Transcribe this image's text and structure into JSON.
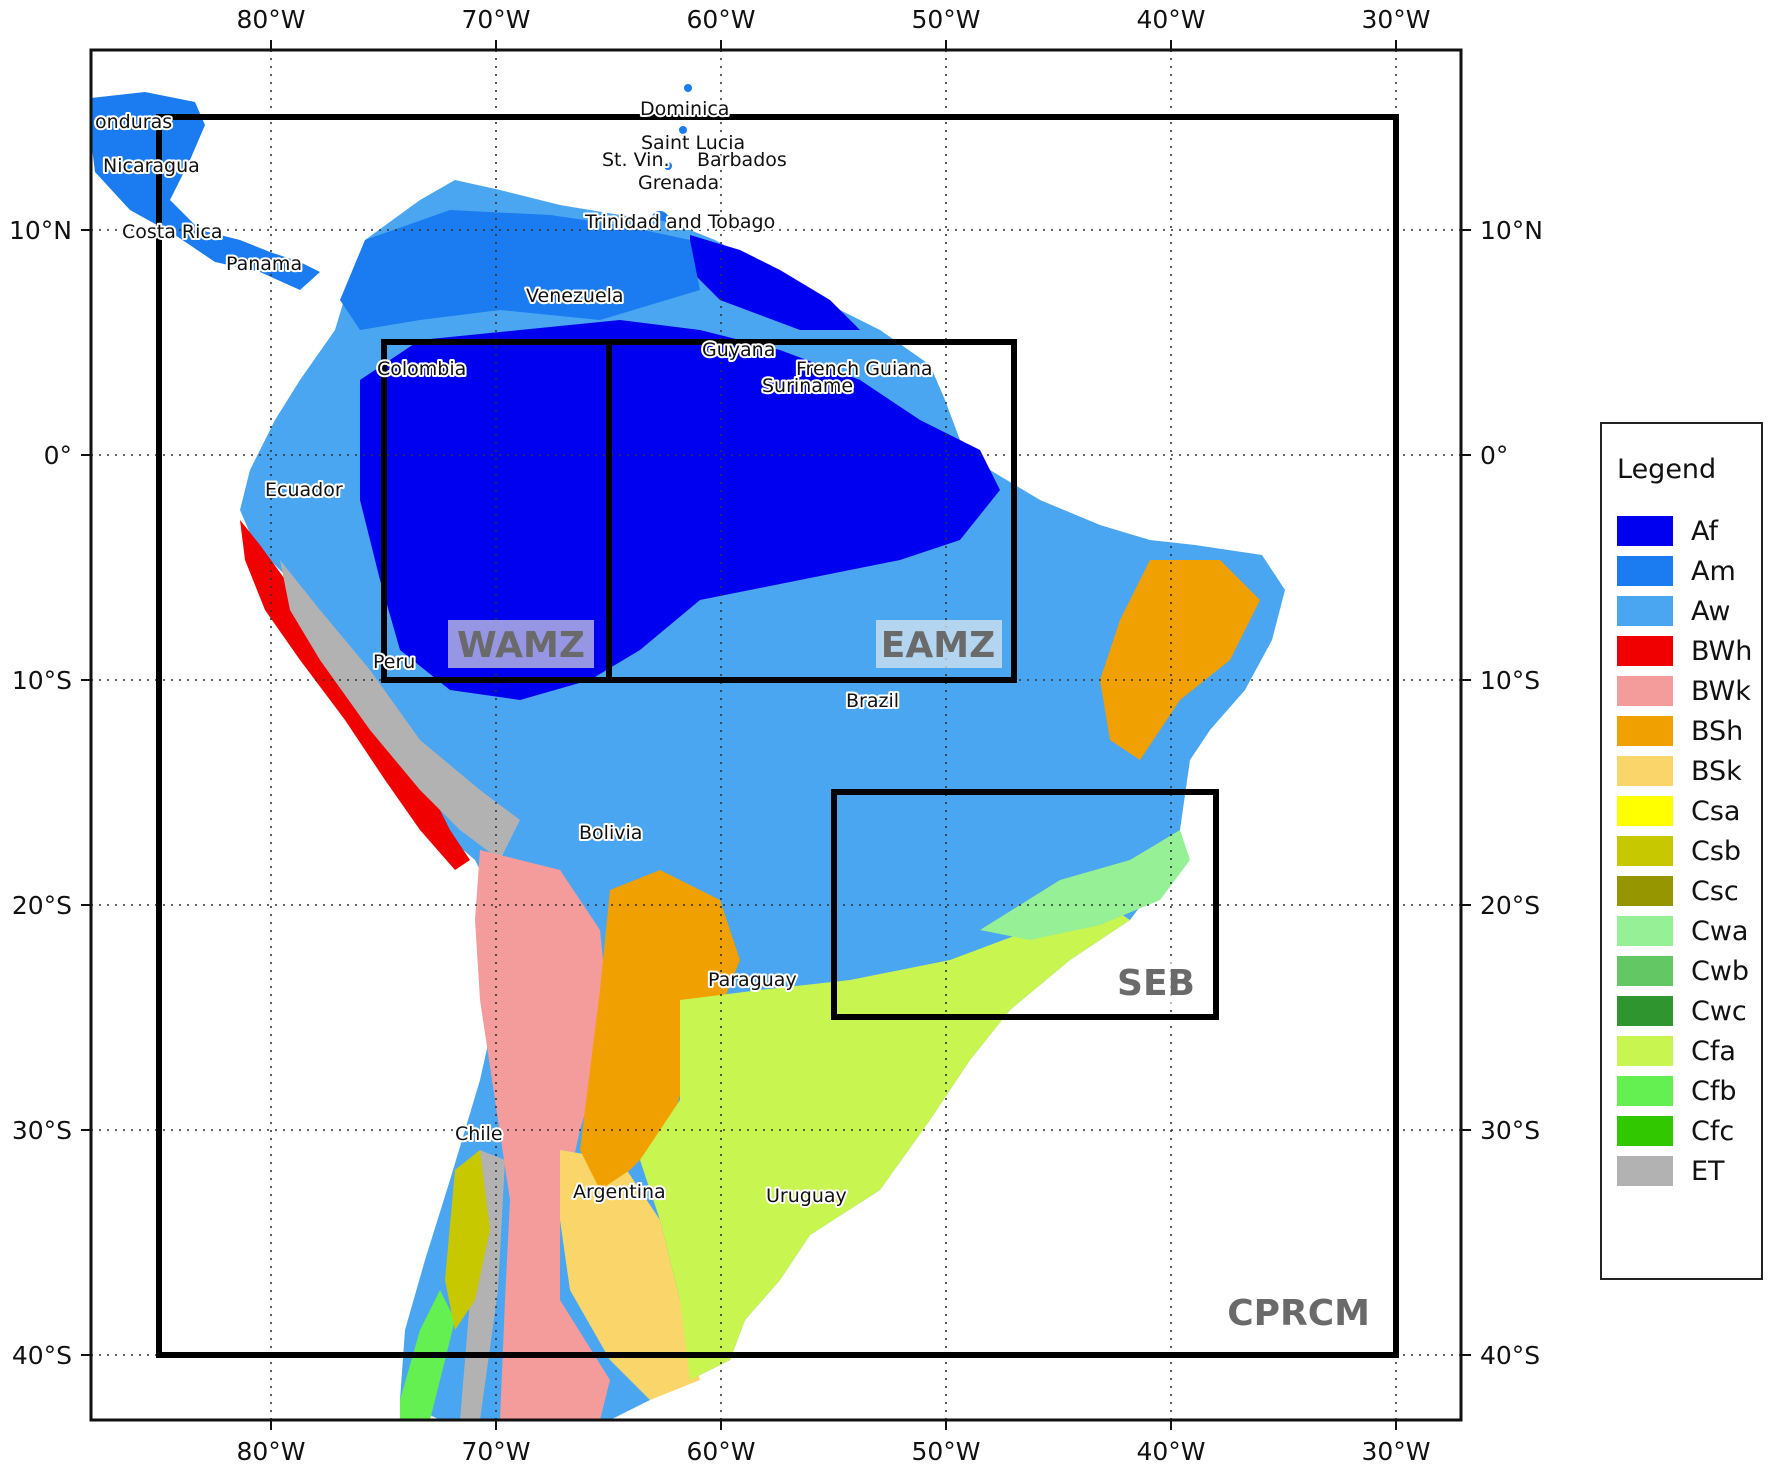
{
  "map": {
    "lon_ticks": [
      "80°W",
      "70°W",
      "60°W",
      "50°W",
      "40°W",
      "30°W"
    ],
    "lat_ticks": [
      "10°N",
      "0°",
      "10°S",
      "20°S",
      "30°S",
      "40°S"
    ],
    "extent": {
      "lon": [
        -88,
        -27
      ],
      "lat": [
        -43,
        18
      ]
    },
    "graticule_step_deg": 10,
    "grid": true,
    "domain_label": "CPRCM",
    "domain_box": {
      "lon": [
        -85,
        -30
      ],
      "lat": [
        -40,
        15
      ]
    },
    "subregions": [
      {
        "name": "WAMZ",
        "lon": [
          -75,
          -65
        ],
        "lat": [
          -10,
          5
        ]
      },
      {
        "name": "EAMZ",
        "lon": [
          -65,
          -47
        ],
        "lat": [
          -10,
          5
        ]
      },
      {
        "name": "SEB",
        "lon": [
          -55,
          -38
        ],
        "lat": [
          -25,
          -15
        ]
      }
    ],
    "countries": [
      "onduras",
      "Nicaragua",
      "Costa Rica",
      "Panama",
      "Dominica",
      "Saint Lucia",
      "St. Vin.",
      "Barbados",
      "Grenada",
      "Trinidad and Tobago",
      "Venezuela",
      "Colombia",
      "Guyana",
      "French Guiana",
      "Suriname",
      "Ecuador",
      "Peru",
      "Brazil",
      "Bolivia",
      "Paraguay",
      "Chile",
      "Argentina",
      "Uruguay"
    ]
  },
  "legend": {
    "title": "Legend",
    "items": [
      {
        "label": "Af",
        "color": "#0000f0"
      },
      {
        "label": "Am",
        "color": "#1a7cf0"
      },
      {
        "label": "Aw",
        "color": "#4aa6f0"
      },
      {
        "label": "BWh",
        "color": "#f00000"
      },
      {
        "label": "BWk",
        "color": "#f49b9b"
      },
      {
        "label": "BSh",
        "color": "#f0a000"
      },
      {
        "label": "BSk",
        "color": "#fad66a"
      },
      {
        "label": "Csa",
        "color": "#ffff00"
      },
      {
        "label": "Csb",
        "color": "#c8c800"
      },
      {
        "label": "Csc",
        "color": "#969600"
      },
      {
        "label": "Cwa",
        "color": "#96f096"
      },
      {
        "label": "Cwb",
        "color": "#63c764"
      },
      {
        "label": "Cwc",
        "color": "#2f962f"
      },
      {
        "label": "Cfa",
        "color": "#c8f550"
      },
      {
        "label": "Cfb",
        "color": "#64f050"
      },
      {
        "label": "Cfc",
        "color": "#32c800"
      },
      {
        "label": "ET",
        "color": "#b2b2b2"
      }
    ]
  }
}
